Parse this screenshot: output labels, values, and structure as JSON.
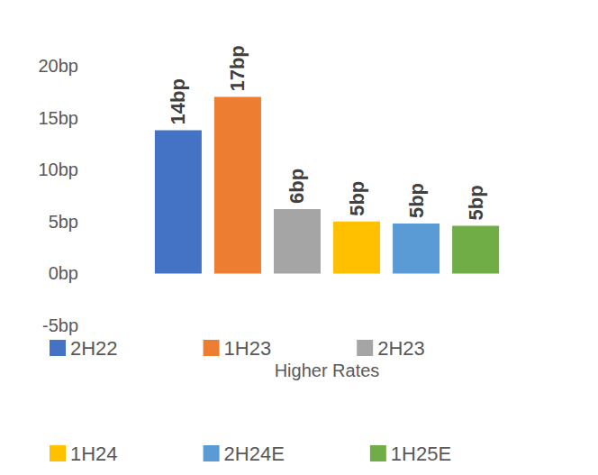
{
  "chart_data": {
    "type": "bar",
    "categories": [
      "Higher Rates"
    ],
    "series": [
      {
        "name": "2H22",
        "color": "#4472c4",
        "values": [
          13.8
        ],
        "value_labels": [
          "14bp"
        ]
      },
      {
        "name": "1H23",
        "color": "#ed7d31",
        "values": [
          17.0
        ],
        "value_labels": [
          "17bp"
        ]
      },
      {
        "name": "2H23",
        "color": "#a5a5a5",
        "values": [
          6.2
        ],
        "value_labels": [
          "6bp"
        ]
      },
      {
        "name": "1H24",
        "color": "#ffc000",
        "values": [
          5.0
        ],
        "value_labels": [
          "5bp"
        ]
      },
      {
        "name": "2H24E",
        "color": "#5b9bd5",
        "values": [
          4.8
        ],
        "value_labels": [
          "5bp"
        ]
      },
      {
        "name": "1H25E",
        "color": "#70ad47",
        "values": [
          4.6
        ],
        "value_labels": [
          "5bp"
        ]
      }
    ],
    "ylim": [
      -5,
      20
    ],
    "yticks": [
      {
        "value": -5,
        "label": "-5bp"
      },
      {
        "value": 0,
        "label": "0bp"
      },
      {
        "value": 5,
        "label": "5bp"
      },
      {
        "value": 10,
        "label": "10bp"
      },
      {
        "value": 15,
        "label": "15bp"
      },
      {
        "value": 20,
        "label": "20bp"
      }
    ],
    "grid": false,
    "data_labels": true,
    "legend": "bottom"
  }
}
